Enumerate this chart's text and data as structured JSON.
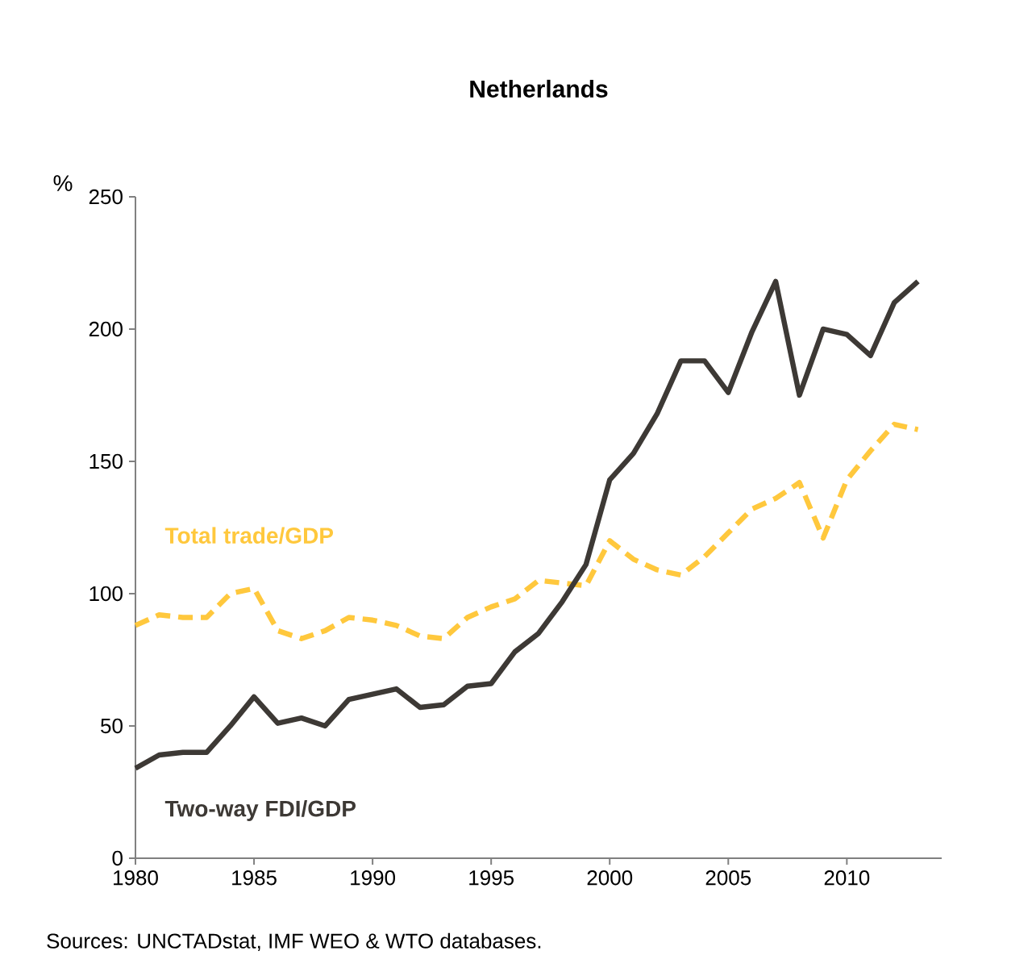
{
  "chart_data": {
    "type": "line",
    "title": "Netherlands",
    "ylabel": "%",
    "x": [
      1980,
      1981,
      1982,
      1983,
      1984,
      1985,
      1986,
      1987,
      1988,
      1989,
      1990,
      1991,
      1992,
      1993,
      1994,
      1995,
      1996,
      1997,
      1998,
      1999,
      2000,
      2001,
      2002,
      2003,
      2004,
      2005,
      2006,
      2007,
      2008,
      2009,
      2010,
      2011,
      2012,
      2013
    ],
    "series": [
      {
        "name": "Total trade/GDP",
        "color": "#ffc83d",
        "line_style": "dashed",
        "values": [
          88,
          92,
          91,
          91,
          100,
          102,
          86,
          83,
          86,
          91,
          90,
          88,
          84,
          83,
          91,
          95,
          98,
          105,
          104,
          103,
          120,
          113,
          109,
          107,
          114,
          123,
          132,
          136,
          142,
          121,
          143,
          154,
          164,
          162
        ]
      },
      {
        "name": "Two-way FDI/GDP",
        "color": "#3d3935",
        "line_style": "solid",
        "values": [
          34,
          39,
          40,
          40,
          50,
          61,
          51,
          53,
          50,
          60,
          62,
          64,
          57,
          58,
          65,
          66,
          78,
          85,
          97,
          111,
          143,
          153,
          168,
          188,
          188,
          176,
          199,
          218,
          175,
          200,
          198,
          190,
          210,
          218
        ]
      }
    ],
    "xlim": [
      1980,
      2014
    ],
    "xticks": [
      1980,
      1985,
      1990,
      1995,
      2000,
      2005,
      2010
    ],
    "ylim": [
      0,
      250
    ],
    "yticks": [
      0,
      50,
      100,
      150,
      200,
      250
    ],
    "grid": false,
    "annotations": [
      "Sources: UNCTADstat, IMF WEO & WTO databases."
    ]
  }
}
